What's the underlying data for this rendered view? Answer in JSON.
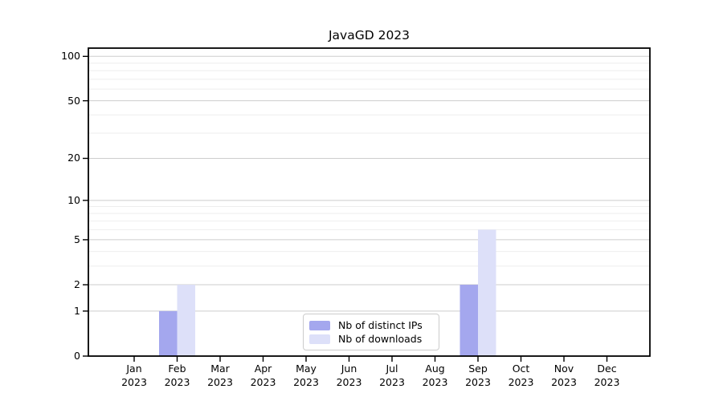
{
  "chart_data": {
    "type": "bar",
    "title": "JavaGD 2023",
    "categories": [
      "Jan",
      "Feb",
      "Mar",
      "Apr",
      "May",
      "Jun",
      "Jul",
      "Aug",
      "Sep",
      "Oct",
      "Nov",
      "Dec"
    ],
    "year_label": "2023",
    "series": [
      {
        "name": "Nb of distinct IPs",
        "color": "#a4a7ee",
        "values": [
          0,
          1,
          0,
          0,
          0,
          0,
          0,
          0,
          2,
          0,
          0,
          0
        ]
      },
      {
        "name": "Nb of downloads",
        "color": "#dde0f9",
        "values": [
          0,
          2,
          0,
          0,
          0,
          0,
          0,
          0,
          6,
          0,
          0,
          0
        ]
      }
    ],
    "yticks": [
      0,
      1,
      2,
      5,
      10,
      20,
      50,
      100
    ],
    "minor_gridlines": [
      3,
      4,
      6,
      7,
      8,
      9,
      30,
      40,
      60,
      70,
      80,
      90
    ],
    "yscale": "log1p",
    "ylim": [
      0,
      113
    ],
    "xlabel": "",
    "ylabel": "",
    "grid": "on",
    "legend_position": "bottom-center",
    "colors": {
      "major_grid": "#cdcdcd",
      "minor_grid": "#eeeeee",
      "axis": "#000000",
      "text": "#000000",
      "legend_border": "#cccccc",
      "background": "#ffffff"
    }
  }
}
